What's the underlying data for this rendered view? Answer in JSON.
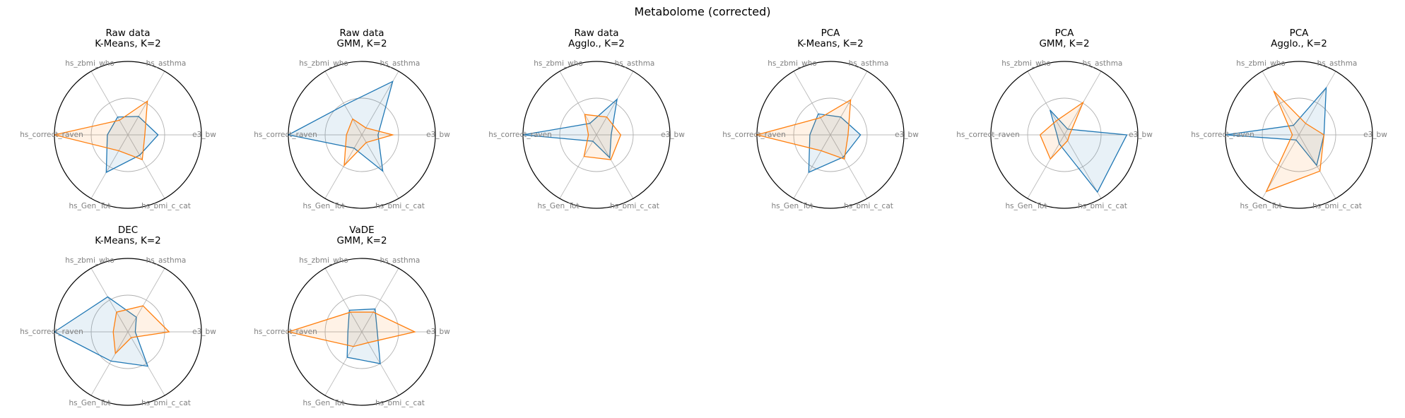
{
  "figure": {
    "title": "Metabolome (corrected)"
  },
  "colors": {
    "series1": "#1f77b4",
    "series2": "#ff7f0e",
    "spoke": "#bbbbbb",
    "inner_ring": "#b0b0b0",
    "outer_ring": "#000000",
    "axis_label": "#808080"
  },
  "chart_data": [
    {
      "type": "radar",
      "title_line1": "Raw data",
      "title_line2": "K-Means, K=2",
      "axes": [
        "e3_bw",
        "hs_asthma",
        "hs_zbmi_who",
        "hs_correct_raven",
        "hs_Gen_Tot",
        "hs_bmi_c_cat"
      ],
      "rlim": [
        0,
        1
      ],
      "rings": [
        0.5,
        1.0
      ],
      "series": [
        {
          "values": [
            0.41,
            0.29,
            0.28,
            0.28,
            0.59,
            0.32
          ]
        },
        {
          "values": [
            0.23,
            0.53,
            0.23,
            1.0,
            0.25,
            0.39
          ]
        }
      ]
    },
    {
      "type": "radar",
      "title_line1": "Raw data",
      "title_line2": "GMM, K=2",
      "axes": [
        "e3_bw",
        "hs_asthma",
        "hs_zbmi_who",
        "hs_correct_raven",
        "hs_Gen_Tot",
        "hs_bmi_c_cat"
      ],
      "rlim": [
        0,
        1
      ],
      "rings": [
        0.5,
        1.0
      ],
      "series": [
        {
          "values": [
            0.22,
            0.84,
            0.47,
            1.0,
            0.21,
            0.57
          ]
        },
        {
          "values": [
            0.42,
            0.11,
            0.25,
            0.21,
            0.48,
            0.12
          ]
        }
      ]
    },
    {
      "type": "radar",
      "title_line1": "Raw data",
      "title_line2": "Agglo., K=2",
      "axes": [
        "e3_bw",
        "hs_asthma",
        "hs_zbmi_who",
        "hs_correct_raven",
        "hs_Gen_Tot",
        "hs_bmi_c_cat"
      ],
      "rlim": [
        0,
        1
      ],
      "rings": [
        0.5,
        1.0
      ],
      "series": [
        {
          "values": [
            0.2,
            0.56,
            0.18,
            1.0,
            0.1,
            0.36
          ]
        },
        {
          "values": [
            0.33,
            0.28,
            0.32,
            0.11,
            0.34,
            0.39
          ]
        }
      ]
    },
    {
      "type": "radar",
      "title_line1": "PCA",
      "title_line2": "K-Means, K=2",
      "axes": [
        "e3_bw",
        "hs_asthma",
        "hs_zbmi_who",
        "hs_correct_raven",
        "hs_Gen_Tot",
        "hs_bmi_c_cat"
      ],
      "rlim": [
        0,
        1
      ],
      "rings": [
        0.5,
        1.0
      ],
      "series": [
        {
          "values": [
            0.41,
            0.28,
            0.33,
            0.28,
            0.59,
            0.35
          ]
        },
        {
          "values": [
            0.24,
            0.55,
            0.27,
            1.0,
            0.25,
            0.38
          ]
        }
      ]
    },
    {
      "type": "radar",
      "title_line1": "PCA",
      "title_line2": "GMM, K=2",
      "axes": [
        "e3_bw",
        "hs_asthma",
        "hs_zbmi_who",
        "hs_correct_raven",
        "hs_Gen_Tot",
        "hs_bmi_c_cat"
      ],
      "rlim": [
        0,
        1
      ],
      "rings": [
        0.5,
        1.0
      ],
      "series": [
        {
          "values": [
            0.85,
            0.09,
            0.39,
            0.1,
            0.14,
            0.9
          ]
        },
        {
          "values": [
            0.07,
            0.51,
            0.22,
            0.33,
            0.38,
            0.09
          ]
        }
      ]
    },
    {
      "type": "radar",
      "title_line1": "PCA",
      "title_line2": "Agglo., K=2",
      "axes": [
        "e3_bw",
        "hs_asthma",
        "hs_zbmi_who",
        "hs_correct_raven",
        "hs_Gen_Tot",
        "hs_bmi_c_cat"
      ],
      "rlim": [
        0,
        1
      ],
      "rings": [
        0.5,
        1.0
      ],
      "series": [
        {
          "values": [
            0.34,
            0.74,
            0.15,
            1.0,
            0.08,
            0.48
          ]
        },
        {
          "values": [
            0.34,
            0.18,
            0.69,
            0.09,
            0.89,
            0.57
          ]
        }
      ]
    },
    {
      "type": "radar",
      "title_line1": "DEC",
      "title_line2": "K-Means, K=2",
      "axes": [
        "e3_bw",
        "hs_asthma",
        "hs_zbmi_who",
        "hs_correct_raven",
        "hs_Gen_Tot",
        "hs_bmi_c_cat"
      ],
      "rlim": [
        0,
        1
      ],
      "rings": [
        0.5,
        1.0
      ],
      "series": [
        {
          "values": [
            0.1,
            0.23,
            0.55,
            1.0,
            0.46,
            0.54
          ]
        },
        {
          "values": [
            0.56,
            0.41,
            0.31,
            0.2,
            0.34,
            0.09
          ]
        }
      ]
    },
    {
      "type": "radar",
      "title_line1": "VaDE",
      "title_line2": "GMM, K=2",
      "axes": [
        "e3_bw",
        "hs_asthma",
        "hs_zbmi_who",
        "hs_correct_raven",
        "hs_Gen_Tot",
        "hs_bmi_c_cat"
      ],
      "rlim": [
        0,
        1
      ],
      "rings": [
        0.5,
        1.0
      ],
      "series": [
        {
          "values": [
            0.21,
            0.36,
            0.34,
            0.19,
            0.4,
            0.5
          ]
        },
        {
          "values": [
            0.72,
            0.31,
            0.31,
            1.0,
            0.23,
            0.17
          ]
        }
      ]
    }
  ]
}
